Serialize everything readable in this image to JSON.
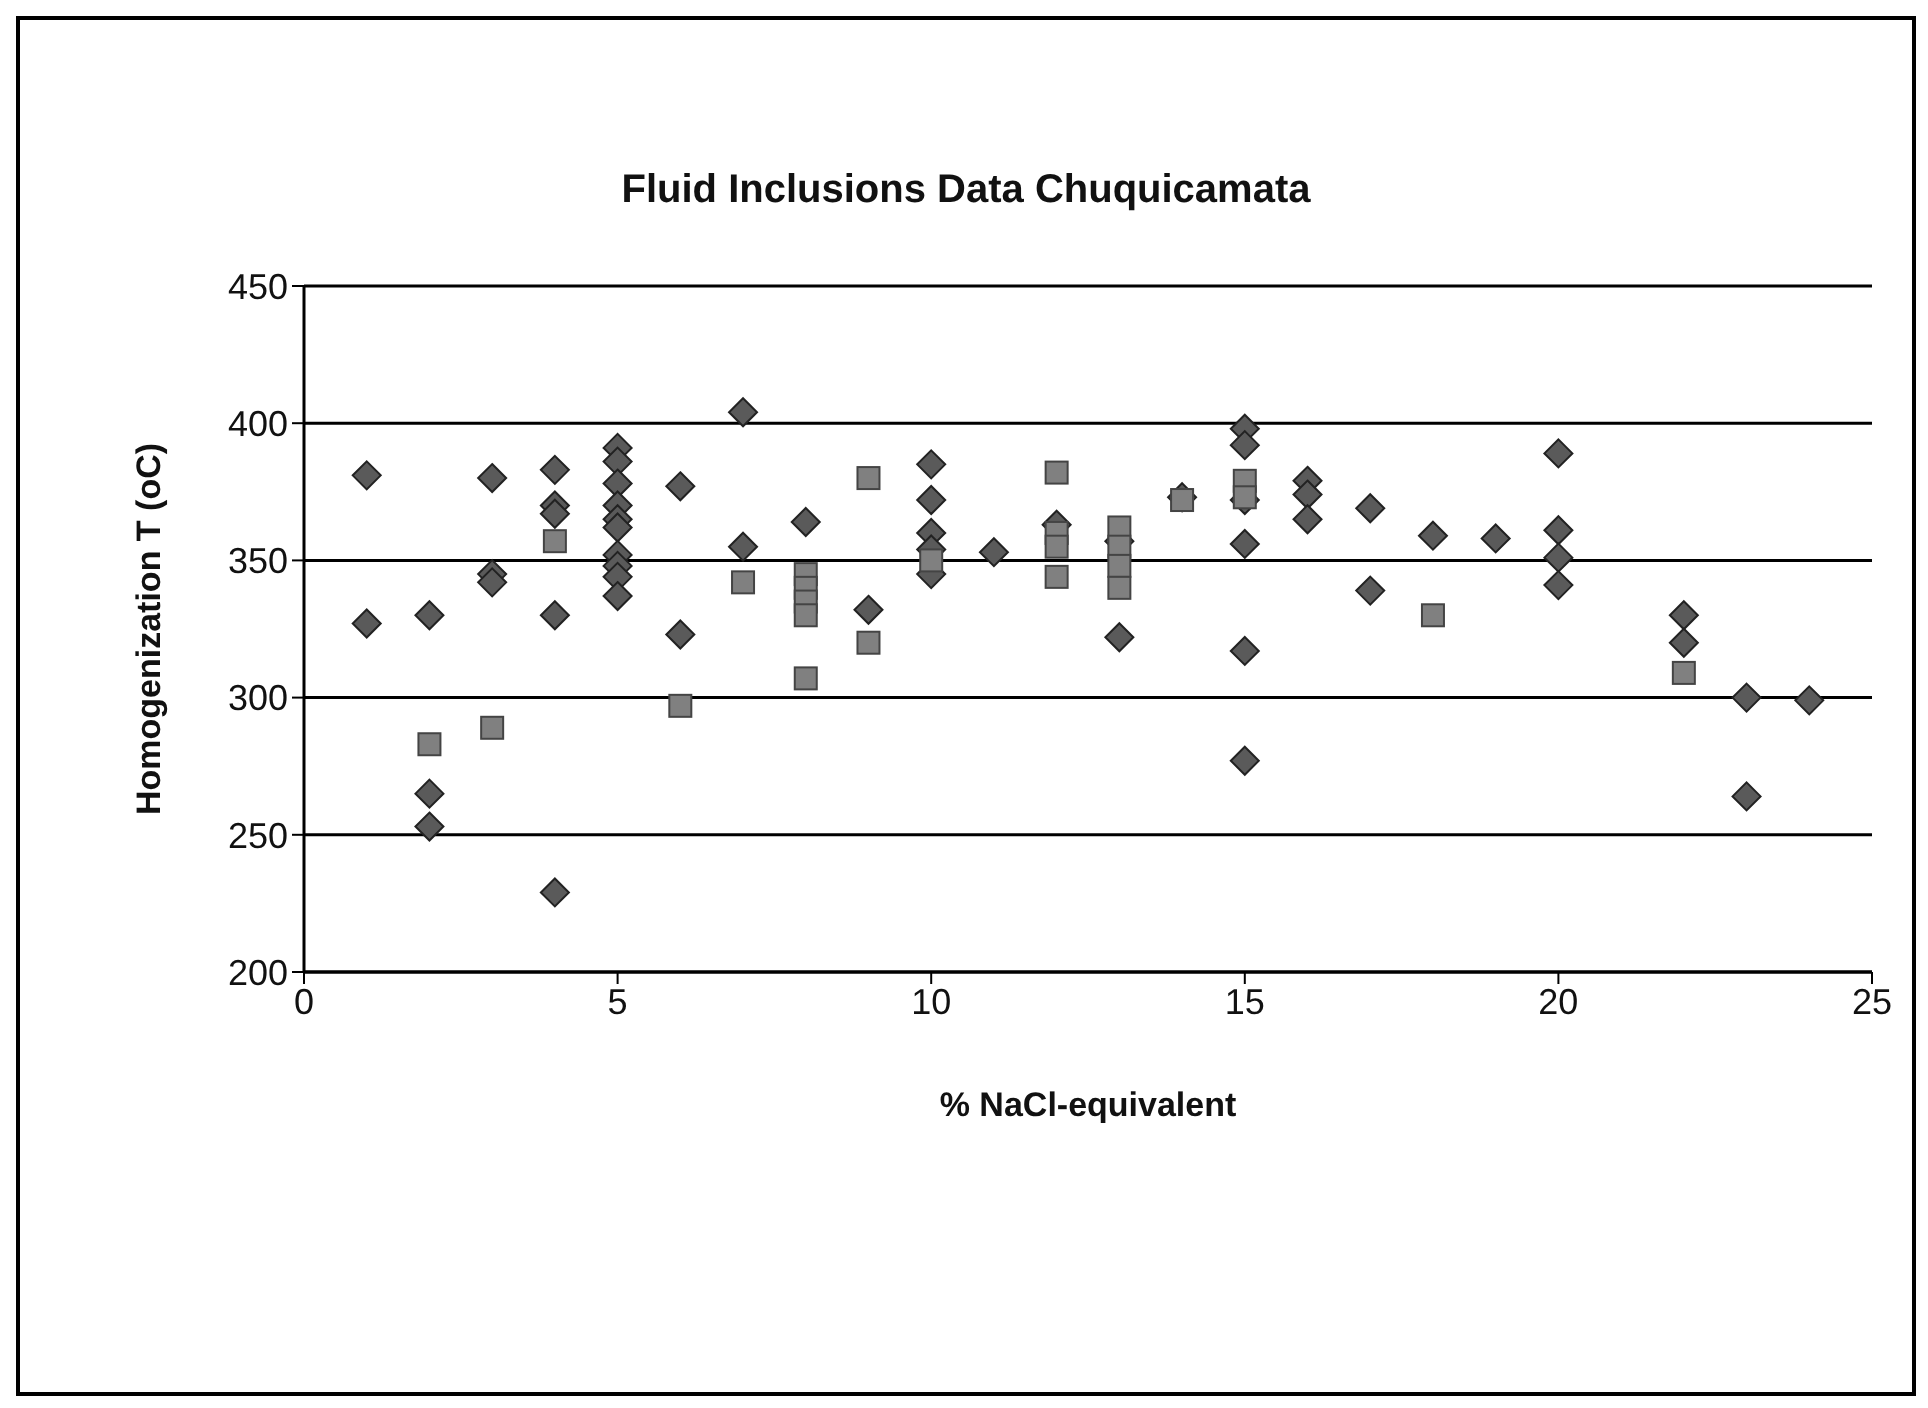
{
  "chart_data": {
    "type": "scatter",
    "title": "Fluid Inclusions Data Chuquicamata",
    "xlabel": "% NaCl-equivalent",
    "ylabel": "Homogenization T (oC)",
    "xlim": [
      0,
      25
    ],
    "xticks": [
      0,
      5,
      10,
      15,
      20,
      25
    ],
    "ylim": [
      200,
      450
    ],
    "yticks": [
      200,
      250,
      300,
      350,
      400,
      450
    ],
    "grid": "y",
    "legend": false,
    "series": [
      {
        "color": "#5a5a5a",
        "marker": "diamond",
        "x": [
          1,
          1,
          2,
          2,
          2,
          3,
          3,
          3,
          4,
          4,
          4,
          4,
          4,
          5,
          5,
          5,
          5,
          5,
          5,
          5,
          5,
          5,
          5,
          6,
          6,
          7,
          7,
          8,
          9,
          10,
          10,
          10,
          10,
          10,
          11,
          12,
          13,
          13,
          14,
          15,
          15,
          15,
          15,
          15,
          15,
          16,
          16,
          16,
          17,
          17,
          18,
          19,
          20,
          20,
          20,
          20,
          22,
          22,
          23,
          23,
          24
        ],
        "values": [
          381,
          327,
          330,
          265,
          253,
          380,
          345,
          342,
          383,
          370,
          367,
          330,
          229,
          391,
          386,
          378,
          370,
          365,
          362,
          352,
          348,
          344,
          337,
          377,
          323,
          404,
          355,
          364,
          332,
          385,
          372,
          360,
          354,
          345,
          353,
          363,
          357,
          322,
          373,
          398,
          392,
          372,
          356,
          317,
          277,
          379,
          374,
          365,
          369,
          339,
          359,
          358,
          389,
          361,
          351,
          341,
          330,
          320,
          300,
          264,
          299
        ]
      },
      {
        "color": "#808080",
        "marker": "square",
        "x": [
          2,
          3,
          4,
          6,
          7,
          8,
          8,
          8,
          8,
          8,
          9,
          9,
          10,
          12,
          12,
          12,
          12,
          13,
          13,
          13,
          13,
          14,
          15,
          15,
          18,
          22
        ],
        "values": [
          283,
          289,
          357,
          297,
          342,
          345,
          340,
          335,
          330,
          307,
          380,
          320,
          350,
          382,
          360,
          355,
          344,
          362,
          355,
          348,
          340,
          372,
          379,
          373,
          330,
          309
        ]
      }
    ]
  }
}
